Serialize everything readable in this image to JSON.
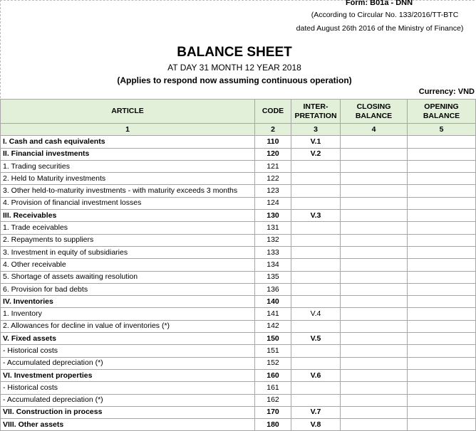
{
  "form": "Form: B01a - DNN",
  "circular": "(According to Circular No. 133/2016/TT-BTC",
  "dated": "dated August 26th 2016 of the Ministry of Finance)",
  "title": "BALANCE SHEET",
  "date_line": "AT DAY 31 MONTH 12 YEAR 2018",
  "applies": "(Applies to respond now assuming continuous operation)",
  "currency": "Currency: VND",
  "columns": [
    "ARTICLE",
    "CODE",
    "INTER-PRETATION",
    "CLOSING BALANCE",
    "OPENING BALANCE"
  ],
  "column_numbers": [
    "1",
    "2",
    "3",
    "4",
    "5"
  ],
  "rows": [
    {
      "article": "I. Cash and cash equivalents",
      "code": "110",
      "interp": "V.1",
      "bold": true
    },
    {
      "article": "II. Financial investments",
      "code": "120",
      "interp": "V.2",
      "bold": true
    },
    {
      "article": "1. Trading securities",
      "code": "121",
      "interp": ""
    },
    {
      "article": "2. Held to Maturity investments",
      "code": "122",
      "interp": ""
    },
    {
      "article": "3. Other held-to-maturity investments - with maturity exceeds 3 months",
      "code": "123",
      "interp": ""
    },
    {
      "article": "4. Provision of financial investment losses",
      "code": "124",
      "interp": ""
    },
    {
      "article": "III. Receivables",
      "code": "130",
      "interp": "V.3",
      "bold": true
    },
    {
      "article": "1. Trade eceivables",
      "code": "131",
      "interp": ""
    },
    {
      "article": "2. Repayments to suppliers",
      "code": "132",
      "interp": ""
    },
    {
      "article": "3. Investment in equity of subsidiaries",
      "code": "133",
      "interp": ""
    },
    {
      "article": "4. Other receivable",
      "code": "134",
      "interp": ""
    },
    {
      "article": "5. Shortage of assets awaiting resolution",
      "code": "135",
      "interp": ""
    },
    {
      "article": "6. Provision for bad debts",
      "code": "136",
      "interp": ""
    },
    {
      "article": "IV. Inventories",
      "code": "140",
      "interp": "",
      "bold": true
    },
    {
      "article": "1. Inventory",
      "code": "141",
      "interp": "V.4"
    },
    {
      "article": "2. Allowances for decline in value of inventories (*)",
      "code": "142",
      "interp": ""
    },
    {
      "article": "V. Fixed assets",
      "code": "150",
      "interp": "V.5",
      "bold": true
    },
    {
      "article": "- Historical costs",
      "code": "151",
      "interp": ""
    },
    {
      "article": "- Accumulated depreciation (*)",
      "code": "152",
      "interp": ""
    },
    {
      "article": "VI. Investment properties",
      "code": "160",
      "interp": "V.6",
      "bold": true
    },
    {
      "article": "- Historical costs",
      "code": "161",
      "interp": ""
    },
    {
      "article": "- Accumulated depreciation (*)",
      "code": "162",
      "interp": ""
    },
    {
      "article": "VII. Construction in process",
      "code": "170",
      "interp": "V.7",
      "bold": true
    },
    {
      "article": "VIII. Other assets",
      "code": "180",
      "interp": "V.8",
      "bold": true
    }
  ]
}
